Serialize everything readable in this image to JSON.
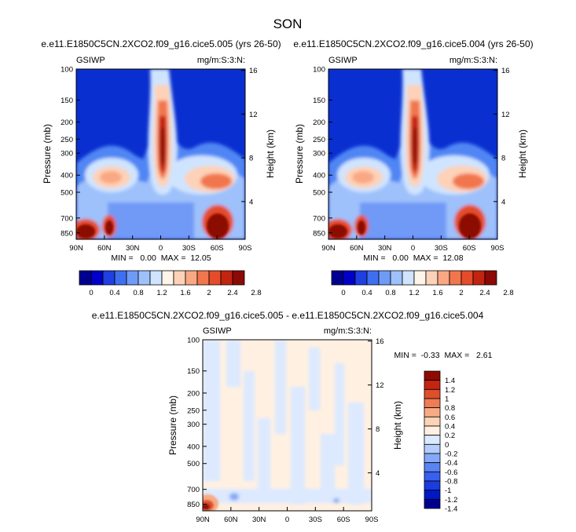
{
  "page_title": "SON",
  "colors": {
    "top_scale": [
      "#000090",
      "#0000c8",
      "#1f3fe0",
      "#3f6ff0",
      "#6f9af6",
      "#9ec0fb",
      "#cfe4ff",
      "#fff4e8",
      "#fdd2b8",
      "#f9a883",
      "#f1764e",
      "#e44c2a",
      "#c22410",
      "#8c0a05"
    ],
    "diff_scale": [
      "#000090",
      "#0018c8",
      "#1a3ce0",
      "#3760ef",
      "#5a84f4",
      "#86a8f8",
      "#b4cdfc",
      "#dce9ff",
      "#fff0e2",
      "#fcd3b6",
      "#f7ab84",
      "#ee7c54",
      "#de4f2b",
      "#c42512",
      "#900a04"
    ]
  },
  "charts": {
    "left": {
      "title": "e.e11.E1850C5CN.2XCO2.f09_g16.cice5.005 (yrs 26-50)",
      "left_label": "GSIWP",
      "right_label": "mg/m:S:3:N:",
      "ylabel": "Pressure (mb)",
      "y2label": "Height (km)",
      "min_max": "MIN =   0.00  MAX =  12.05"
    },
    "right": {
      "title": "e.e11.E1850C5CN.2XCO2.f09_g16.cice5.004 (yrs 26-50)",
      "left_label": "GSIWP",
      "right_label": "mg/m:S:3:N:",
      "ylabel": "Pressure (mb)",
      "y2label": "Height (km)",
      "min_max": "MIN =   0.00  MAX =  12.08"
    },
    "diff": {
      "title": "e.e11.E1850C5CN.2XCO2.f09_g16.cice5.005 - e.e11.E1850C5CN.2XCO2.f09_g16.cice5.004",
      "left_label": "GSIWP",
      "right_label": "mg/m:S:3:N:",
      "ylabel": "Pressure (mb)",
      "y2label": "Height (km)",
      "min_max": "MIN =  -0.33  MAX =   2.61"
    }
  },
  "chart_data": [
    {
      "type": "heatmap",
      "id": "left",
      "title": "e.e11.E1850C5CN.2XCO2.f09_g16.cice5.005 (yrs 26-50)",
      "xlabel": "Latitude",
      "ylabel": "Pressure (mb)",
      "y2label": "Height (km)",
      "x_ticks": [
        "90N",
        "60N",
        "30N",
        "0",
        "30S",
        "60S",
        "90S"
      ],
      "y_ticks": [
        "100",
        "150",
        "200",
        "250",
        "300",
        "400",
        "500",
        "700",
        "850"
      ],
      "y_tick_values": [
        100,
        150,
        200,
        250,
        300,
        400,
        500,
        700,
        850
      ],
      "y2_ticks": [
        "16",
        "12",
        "8",
        "4"
      ],
      "y2_tick_values": [
        16,
        12,
        8,
        4
      ],
      "xlim": [
        90,
        -90
      ],
      "ylim": [
        100,
        925
      ],
      "min": 0.0,
      "max": 12.05,
      "features": [
        {
          "lat": 8,
          "p": 250,
          "value": 12.0
        },
        {
          "lat": 52,
          "p": 400,
          "value": 2.2
        },
        {
          "lat": -55,
          "p": 450,
          "value": 2.5
        },
        {
          "lat": -60,
          "p": 870,
          "value": 3.0
        },
        {
          "lat": 85,
          "p": 870,
          "value": 3.0
        },
        {
          "lat": 68,
          "p": 820,
          "value": 2.8
        }
      ]
    },
    {
      "type": "heatmap",
      "id": "right",
      "title": "e.e11.E1850C5CN.2XCO2.f09_g16.cice5.004 (yrs 26-50)",
      "xlabel": "Latitude",
      "ylabel": "Pressure (mb)",
      "y2label": "Height (km)",
      "x_ticks": [
        "90N",
        "60N",
        "30N",
        "0",
        "30S",
        "60S",
        "90S"
      ],
      "y_ticks": [
        "100",
        "150",
        "200",
        "250",
        "300",
        "400",
        "500",
        "700",
        "850"
      ],
      "y_tick_values": [
        100,
        150,
        200,
        250,
        300,
        400,
        500,
        700,
        850
      ],
      "y2_ticks": [
        "16",
        "12",
        "8",
        "4"
      ],
      "y2_tick_values": [
        16,
        12,
        8,
        4
      ],
      "xlim": [
        90,
        -90
      ],
      "ylim": [
        100,
        925
      ],
      "min": 0.0,
      "max": 12.08,
      "features": [
        {
          "lat": 8,
          "p": 250,
          "value": 12.0
        },
        {
          "lat": 52,
          "p": 400,
          "value": 2.2
        },
        {
          "lat": -55,
          "p": 450,
          "value": 2.5
        },
        {
          "lat": -60,
          "p": 870,
          "value": 3.0
        },
        {
          "lat": 85,
          "p": 870,
          "value": 3.0
        },
        {
          "lat": 68,
          "p": 820,
          "value": 2.8
        }
      ]
    },
    {
      "type": "heatmap",
      "id": "diff",
      "title": "e.e11.E1850C5CN.2XCO2.f09_g16.cice5.005 - e.e11.E1850C5CN.2XCO2.f09_g16.cice5.004",
      "xlabel": "Latitude",
      "ylabel": "Pressure (mb)",
      "y2label": "Height (km)",
      "x_ticks": [
        "90N",
        "60N",
        "30N",
        "0",
        "30S",
        "60S",
        "90S"
      ],
      "y_ticks": [
        "100",
        "150",
        "200",
        "250",
        "300",
        "400",
        "500",
        "700",
        "850"
      ],
      "y_tick_values": [
        100,
        150,
        200,
        250,
        300,
        400,
        500,
        700,
        850
      ],
      "y2_ticks": [
        "16",
        "12",
        "8",
        "4"
      ],
      "y2_tick_values": [
        16,
        12,
        8,
        4
      ],
      "xlim": [
        90,
        -90
      ],
      "ylim": [
        100,
        925
      ],
      "min": -0.33,
      "max": 2.61,
      "features": [
        {
          "lat": 87,
          "p": 880,
          "value": 2.6
        },
        {
          "lat": 40,
          "p": 850,
          "value": -0.3
        }
      ]
    }
  ],
  "colorbars": {
    "top_labels": [
      "0",
      "0.4",
      "0.8",
      "1.2",
      "1.6",
      "2",
      "2.4",
      "2.8"
    ],
    "diff_labels": [
      "1.4",
      "1.2",
      "1",
      "0.8",
      "0.6",
      "0.4",
      "0.2",
      "0",
      "-0.2",
      "-0.4",
      "-0.6",
      "-0.8",
      "-1",
      "-1.2",
      "-1.4"
    ]
  }
}
